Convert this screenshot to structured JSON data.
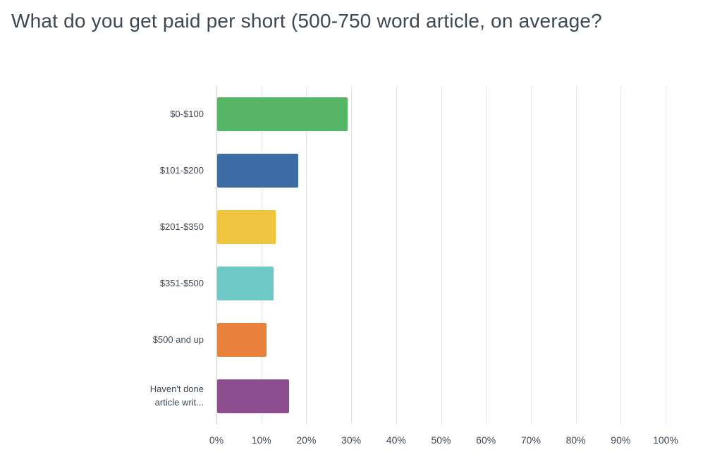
{
  "title": "What do you get paid per short (500-750 word article, on average?",
  "colors": {
    "background": "#ffffff",
    "title_text": "#3d4853",
    "axis_text": "#3d4853",
    "gridline": "#e4e4e4",
    "axis_line": "#cccccc"
  },
  "chart_data": {
    "type": "bar",
    "orientation": "horizontal",
    "title": "What do you get paid per short (500-750 word article, on average?",
    "categories": [
      "$0-$100",
      "$101-$200",
      "$201-$350",
      "$351-$500",
      "$500 and up",
      "Haven't done article writ..."
    ],
    "values": [
      29,
      18,
      13,
      12.5,
      11,
      16
    ],
    "bar_colors": [
      "#57b567",
      "#3e6da6",
      "#efc53f",
      "#6ec8c5",
      "#e8813b",
      "#8d4e8f"
    ],
    "xlabel": "",
    "ylabel": "",
    "xlim": [
      0,
      100
    ],
    "x_ticks": [
      "0%",
      "10%",
      "20%",
      "30%",
      "40%",
      "50%",
      "60%",
      "70%",
      "80%",
      "90%",
      "100%"
    ],
    "grid": true,
    "legend": false
  }
}
